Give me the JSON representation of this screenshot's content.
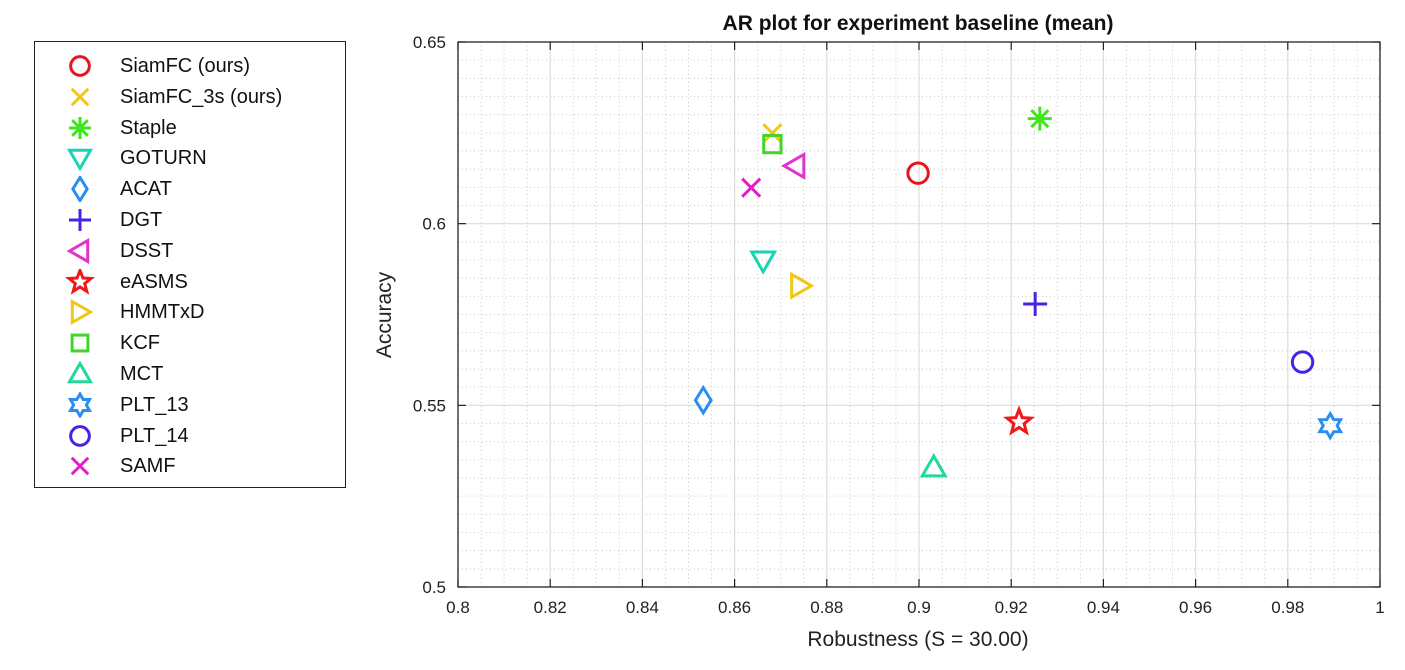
{
  "chart_data": {
    "type": "scatter",
    "title": "AR plot for experiment baseline (mean)",
    "xlabel": "Robustness (S = 30.00)",
    "ylabel": "Accuracy",
    "xlim": [
      0.8,
      1.0
    ],
    "ylim": [
      0.5,
      0.65
    ],
    "xticks": [
      "0.8",
      "0.82",
      "0.84",
      "0.86",
      "0.88",
      "0.9",
      "0.92",
      "0.94",
      "0.96",
      "0.98",
      "1"
    ],
    "yticks": [
      "0.5",
      "0.55",
      "0.6",
      "0.65"
    ],
    "grid": true,
    "legend_position": "outside-left",
    "series": [
      {
        "name": "SiamFC (ours)",
        "marker": "circle",
        "color": "#e8141c",
        "x": 0.8998,
        "y": 0.6139
      },
      {
        "name": "SiamFC_3s (ours)",
        "marker": "x",
        "color": "#f2c614",
        "x": 0.8682,
        "y": 0.6249
      },
      {
        "name": "Staple",
        "marker": "asterisk",
        "color": "#3fe61c",
        "x": 0.9262,
        "y": 0.6289
      },
      {
        "name": "GOTURN",
        "marker": "triangle-down",
        "color": "#16d4b4",
        "x": 0.8662,
        "y": 0.5899
      },
      {
        "name": "ACAT",
        "marker": "diamond",
        "color": "#2a8ef0",
        "x": 0.8532,
        "y": 0.5514
      },
      {
        "name": "DGT",
        "marker": "plus",
        "color": "#4a22e6",
        "x": 0.9252,
        "y": 0.5779
      },
      {
        "name": "DSST",
        "marker": "triangle-left",
        "color": "#e234c8",
        "x": 0.8732,
        "y": 0.6159
      },
      {
        "name": "eASMS",
        "marker": "star",
        "color": "#f01818",
        "x": 0.9217,
        "y": 0.5454
      },
      {
        "name": "HMMTxD",
        "marker": "triangle-right",
        "color": "#f2c614",
        "x": 0.8742,
        "y": 0.5829
      },
      {
        "name": "KCF",
        "marker": "square",
        "color": "#3fd628",
        "x": 0.8682,
        "y": 0.6219
      },
      {
        "name": "MCT",
        "marker": "triangle-up",
        "color": "#22d89a",
        "x": 0.9032,
        "y": 0.5329
      },
      {
        "name": "PLT_13",
        "marker": "hexagram",
        "color": "#2a8ef0",
        "x": 0.9892,
        "y": 0.5444
      },
      {
        "name": "PLT_14",
        "marker": "circle",
        "color": "#4a22e6",
        "x": 0.9832,
        "y": 0.5619
      },
      {
        "name": "SAMF",
        "marker": "x",
        "color": "#e21cc8",
        "x": 0.8636,
        "y": 0.6099
      }
    ]
  }
}
